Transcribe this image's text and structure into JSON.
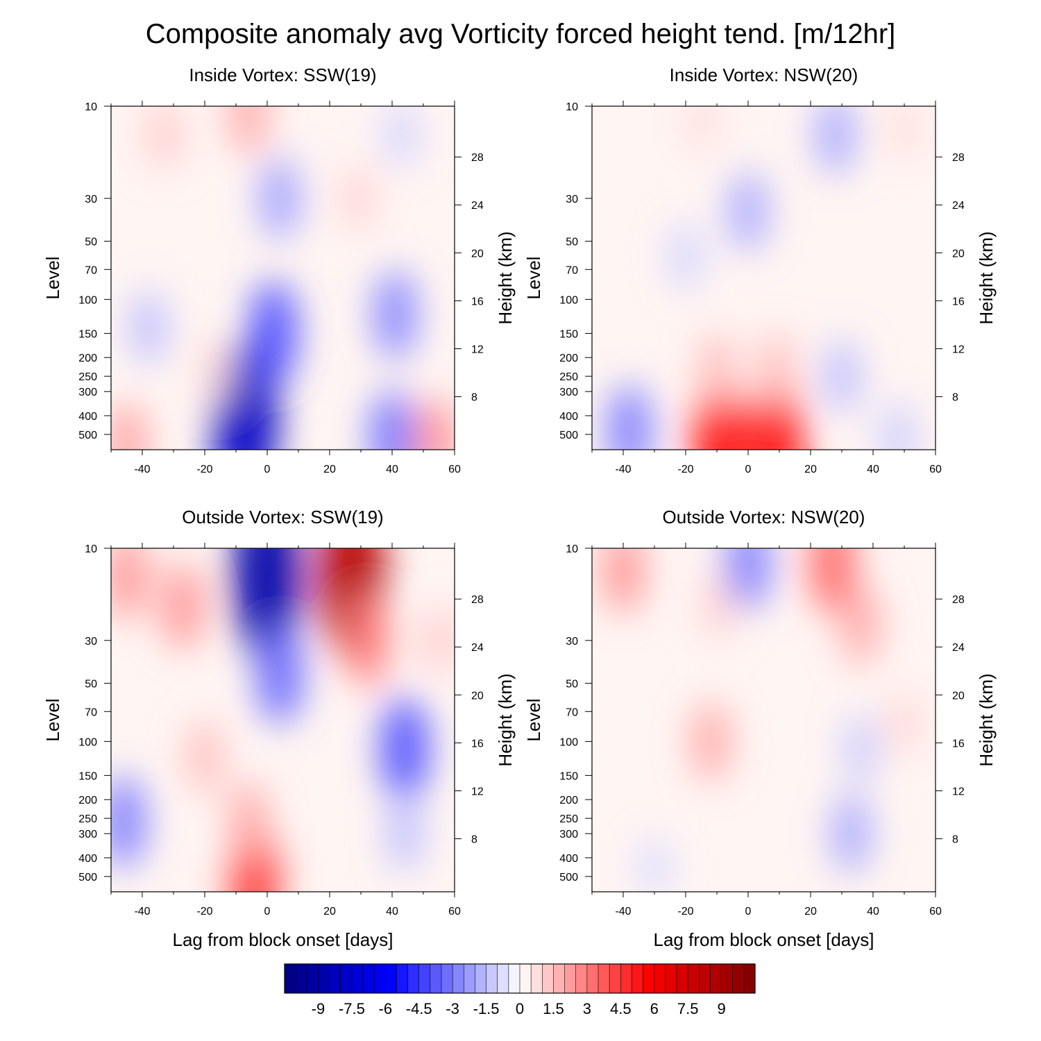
{
  "figure": {
    "title": "Composite anomaly avg Vorticity forced height tend. [m/12hr]"
  },
  "axes": {
    "ylabel_left": "Level",
    "ylabel_right": "Height (km)",
    "xlabel": "Lag from block onset [days]",
    "x_ticks": [
      "-40",
      "-20",
      "0",
      "20",
      "40",
      "60"
    ],
    "x_tick_values": [
      -40,
      -20,
      0,
      20,
      40,
      60
    ],
    "xlim": [
      -50,
      60
    ],
    "pressure_ticks": [
      "10",
      "30",
      "50",
      "70",
      "100",
      "150",
      "200",
      "250",
      "300",
      "400",
      "500"
    ],
    "pressure_values": [
      10,
      30,
      50,
      70,
      100,
      150,
      200,
      250,
      300,
      400,
      500
    ],
    "height_ticks": [
      "28",
      "24",
      "20",
      "16",
      "12",
      "8"
    ],
    "height_values": [
      28,
      24,
      20,
      16,
      12,
      8
    ],
    "ylim_pressure": [
      10,
      600
    ],
    "y_scale": "log"
  },
  "colorbar": {
    "labels": [
      "-9",
      "-7.5",
      "-6",
      "-4.5",
      "-3",
      "-1.5",
      "0",
      "1.5",
      "3",
      "4.5",
      "6",
      "7.5",
      "9"
    ],
    "label_values": [
      -9,
      -7.5,
      -6,
      -4.5,
      -3,
      -1.5,
      0,
      1.5,
      3,
      4.5,
      6,
      7.5,
      9
    ],
    "range": [
      -10.5,
      10.5
    ],
    "step": 0.5,
    "low_color": "#00007f",
    "mid_color": "#ffffff",
    "high_color": "#7f0000"
  },
  "chart_data": [
    {
      "type": "heatmap",
      "title": "Inside Vortex: SSW(19)",
      "features": [
        {
          "lag": -7,
          "pressure": 420,
          "value": -8.0
        },
        {
          "lag": 2,
          "pressure": 150,
          "value": -4.0
        },
        {
          "lag": 4,
          "pressure": 30,
          "value": -2.2
        },
        {
          "lag": -6,
          "pressure": 11,
          "value": 2.0
        },
        {
          "lag": -33,
          "pressure": 14,
          "value": 1.2
        },
        {
          "lag": 29,
          "pressure": 30,
          "value": 1.0
        },
        {
          "lag": 41,
          "pressure": 120,
          "value": -2.8
        },
        {
          "lag": 40,
          "pressure": 520,
          "value": -3.2
        },
        {
          "lag": -38,
          "pressure": 140,
          "value": -1.5
        },
        {
          "lag": -45,
          "pressure": 560,
          "value": 2.2
        },
        {
          "lag": 54,
          "pressure": 540,
          "value": 2.5
        },
        {
          "lag": 43,
          "pressure": 14,
          "value": -1.0
        },
        {
          "lag": -17,
          "pressure": 230,
          "value": 0.8
        }
      ]
    },
    {
      "type": "heatmap",
      "title": "Inside Vortex: NSW(20)",
      "features": [
        {
          "lag": -38,
          "pressure": 480,
          "value": -3.0
        },
        {
          "lag": -9,
          "pressure": 540,
          "value": 5.5
        },
        {
          "lag": 9,
          "pressure": 540,
          "value": 5.5
        },
        {
          "lag": -10,
          "pressure": 230,
          "value": 1.5
        },
        {
          "lag": 9,
          "pressure": 230,
          "value": 1.5
        },
        {
          "lag": 0,
          "pressure": 35,
          "value": -2.0
        },
        {
          "lag": 28,
          "pressure": 14,
          "value": -2.0
        },
        {
          "lag": 30,
          "pressure": 250,
          "value": -1.5
        },
        {
          "lag": -20,
          "pressure": 60,
          "value": -1.0
        },
        {
          "lag": 48,
          "pressure": 520,
          "value": -1.2
        },
        {
          "lag": 50,
          "pressure": 13,
          "value": 0.8
        },
        {
          "lag": -15,
          "pressure": 12,
          "value": 0.8
        }
      ]
    },
    {
      "type": "heatmap",
      "title": "Outside Vortex: SSW(19)",
      "features": [
        {
          "lag": 0,
          "pressure": 14,
          "value": -9.0
        },
        {
          "lag": 4,
          "pressure": 45,
          "value": -3.5
        },
        {
          "lag": 27,
          "pressure": 14,
          "value": 8.5
        },
        {
          "lag": 32,
          "pressure": 30,
          "value": 3.0
        },
        {
          "lag": -46,
          "pressure": 260,
          "value": -3.0
        },
        {
          "lag": 44,
          "pressure": 110,
          "value": -4.0
        },
        {
          "lag": 44,
          "pressure": 300,
          "value": -1.5
        },
        {
          "lag": -4,
          "pressure": 520,
          "value": 4.5
        },
        {
          "lag": -6,
          "pressure": 260,
          "value": 2.0
        },
        {
          "lag": -45,
          "pressure": 14,
          "value": 2.5
        },
        {
          "lag": -27,
          "pressure": 20,
          "value": 2.5
        },
        {
          "lag": -20,
          "pressure": 120,
          "value": 1.5
        },
        {
          "lag": 55,
          "pressure": 30,
          "value": 1.2
        }
      ]
    },
    {
      "type": "heatmap",
      "title": "Outside Vortex: NSW(20)",
      "features": [
        {
          "lag": 0,
          "pressure": 12,
          "value": -3.0
        },
        {
          "lag": 27,
          "pressure": 12,
          "value": 3.5
        },
        {
          "lag": 36,
          "pressure": 25,
          "value": 2.0
        },
        {
          "lag": -40,
          "pressure": 13,
          "value": 2.5
        },
        {
          "lag": -12,
          "pressure": 100,
          "value": 2.0
        },
        {
          "lag": 33,
          "pressure": 300,
          "value": -2.0
        },
        {
          "lag": 36,
          "pressure": 110,
          "value": -1.2
        },
        {
          "lag": -30,
          "pressure": 450,
          "value": -0.8
        },
        {
          "lag": -10,
          "pressure": 20,
          "value": 1.0
        },
        {
          "lag": 50,
          "pressure": 80,
          "value": 0.9
        }
      ]
    }
  ]
}
